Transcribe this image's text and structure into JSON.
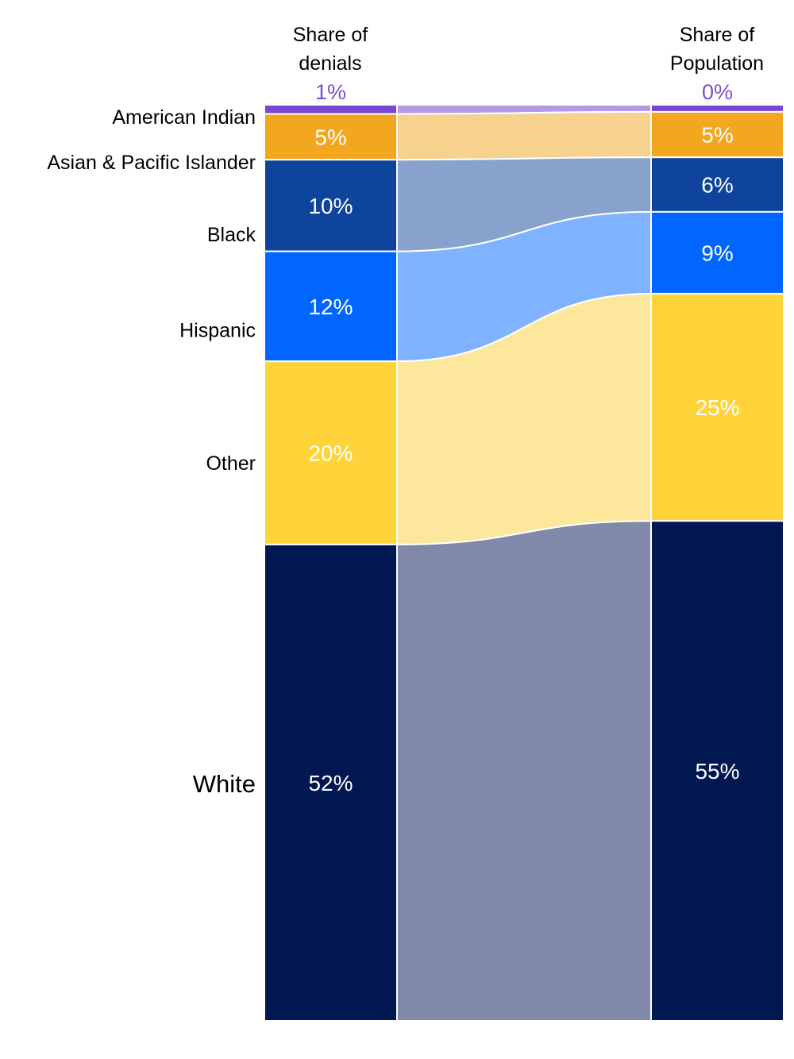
{
  "chart_data": {
    "type": "sankey",
    "left_header": [
      "Share of",
      "denials"
    ],
    "right_header": [
      "Share of",
      "Population"
    ],
    "categories": [
      "American Indian",
      "Asian & Pacific Islander",
      "Black",
      "Hispanic",
      "Other",
      "White"
    ],
    "denials_pct": [
      1,
      5,
      10,
      12,
      20,
      52
    ],
    "population_pct": [
      0,
      5,
      6,
      9,
      25,
      55
    ],
    "denials_labels": [
      "1%",
      "5%",
      "10%",
      "12%",
      "20%",
      "52%"
    ],
    "population_labels": [
      "0%",
      "5%",
      "6%",
      "9%",
      "25%",
      "55%"
    ],
    "colors": [
      "#7747d1",
      "#f2a71e",
      "#0e449b",
      "#0066ff",
      "#ffd43b",
      "#001751"
    ],
    "flow_colors": [
      "#b39ae6",
      "#f7d28f",
      "#87a2cd",
      "#7fb2ff",
      "#fde79d",
      "#808aa8"
    ]
  }
}
